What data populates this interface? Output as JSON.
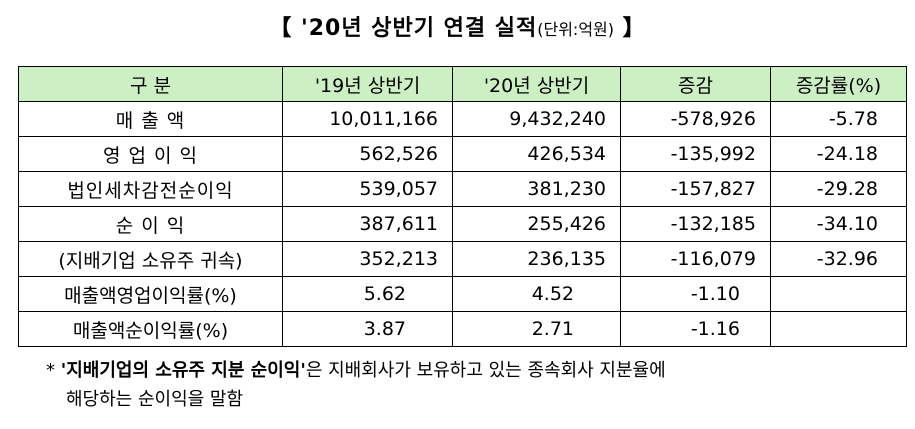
{
  "title": {
    "bracket_open": "【",
    "main": " '20년 상반기 연결 실적",
    "unit": "(단위:억원)",
    "bracket_close": " 】"
  },
  "table": {
    "headers": [
      "구   분",
      "'19년 상반기",
      "'20년 상반기",
      "증감",
      "증감률(%)"
    ],
    "rows": [
      [
        "매   출   액",
        "10,011,166",
        "9,432,240",
        "-578,926",
        "-5.78"
      ],
      [
        "영 업 이 익",
        "562,526",
        "426,534",
        "-135,992",
        "-24.18"
      ],
      [
        "법인세차감전순이익",
        "539,057",
        "381,230",
        "-157,827",
        "-29.28"
      ],
      [
        "순   이   익",
        "387,611",
        "255,426",
        "-132,185",
        "-34.10"
      ],
      [
        "(지배기업 소유주 귀속)",
        "352,213",
        "236,135",
        "-116,079",
        "-32.96"
      ],
      [
        "매출액영업이익률(%)",
        "5.62",
        "4.52",
        "-1.10",
        ""
      ],
      [
        "매출액순이익률(%)",
        "3.87",
        "2.71",
        "-1.16",
        ""
      ]
    ]
  },
  "footnote": {
    "marker": "* ",
    "bold": "'지배기업의 소유주 지분 순이익'",
    "text1": "은 지배회사가 보유하고 있는 종속회사 지분율에",
    "text2": "해당하는 순이익을 말함"
  }
}
